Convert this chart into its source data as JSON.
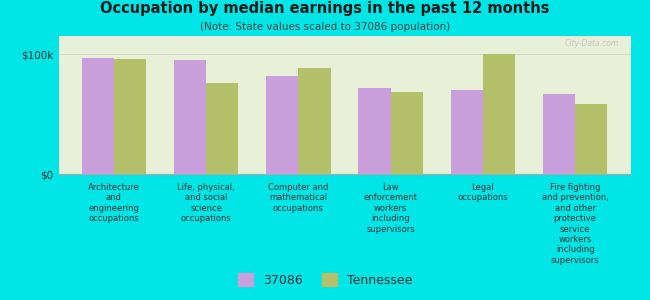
{
  "title": "Occupation by median earnings in the past 12 months",
  "subtitle": "(Note: State values scaled to 37086 population)",
  "background_color": "#00e5e5",
  "plot_bg_color": "#e8f0d8",
  "categories": [
    "Architecture\nand\nengineering\noccupations",
    "Life, physical,\nand social\nscience\noccupations",
    "Computer and\nmathematical\noccupations",
    "Law\nenforcement\nworkers\nincluding\nsupervisors",
    "Legal\noccupations",
    "Fire fighting\nand prevention,\nand other\nprotective\nservice\nworkers\nincluding\nsupervisors"
  ],
  "values_37086": [
    97000,
    95000,
    82000,
    72000,
    70000,
    67000
  ],
  "values_tennessee": [
    96000,
    76000,
    88000,
    68000,
    100000,
    58000
  ],
  "color_37086": "#c9a0dc",
  "color_tennessee": "#b5c06a",
  "ylabel_ticks": [
    "$0",
    "$100k"
  ],
  "ytick_values": [
    0,
    100000
  ],
  "ylim": [
    0,
    115000
  ],
  "legend_37086": "37086",
  "legend_tennessee": "Tennessee",
  "bar_width": 0.35
}
